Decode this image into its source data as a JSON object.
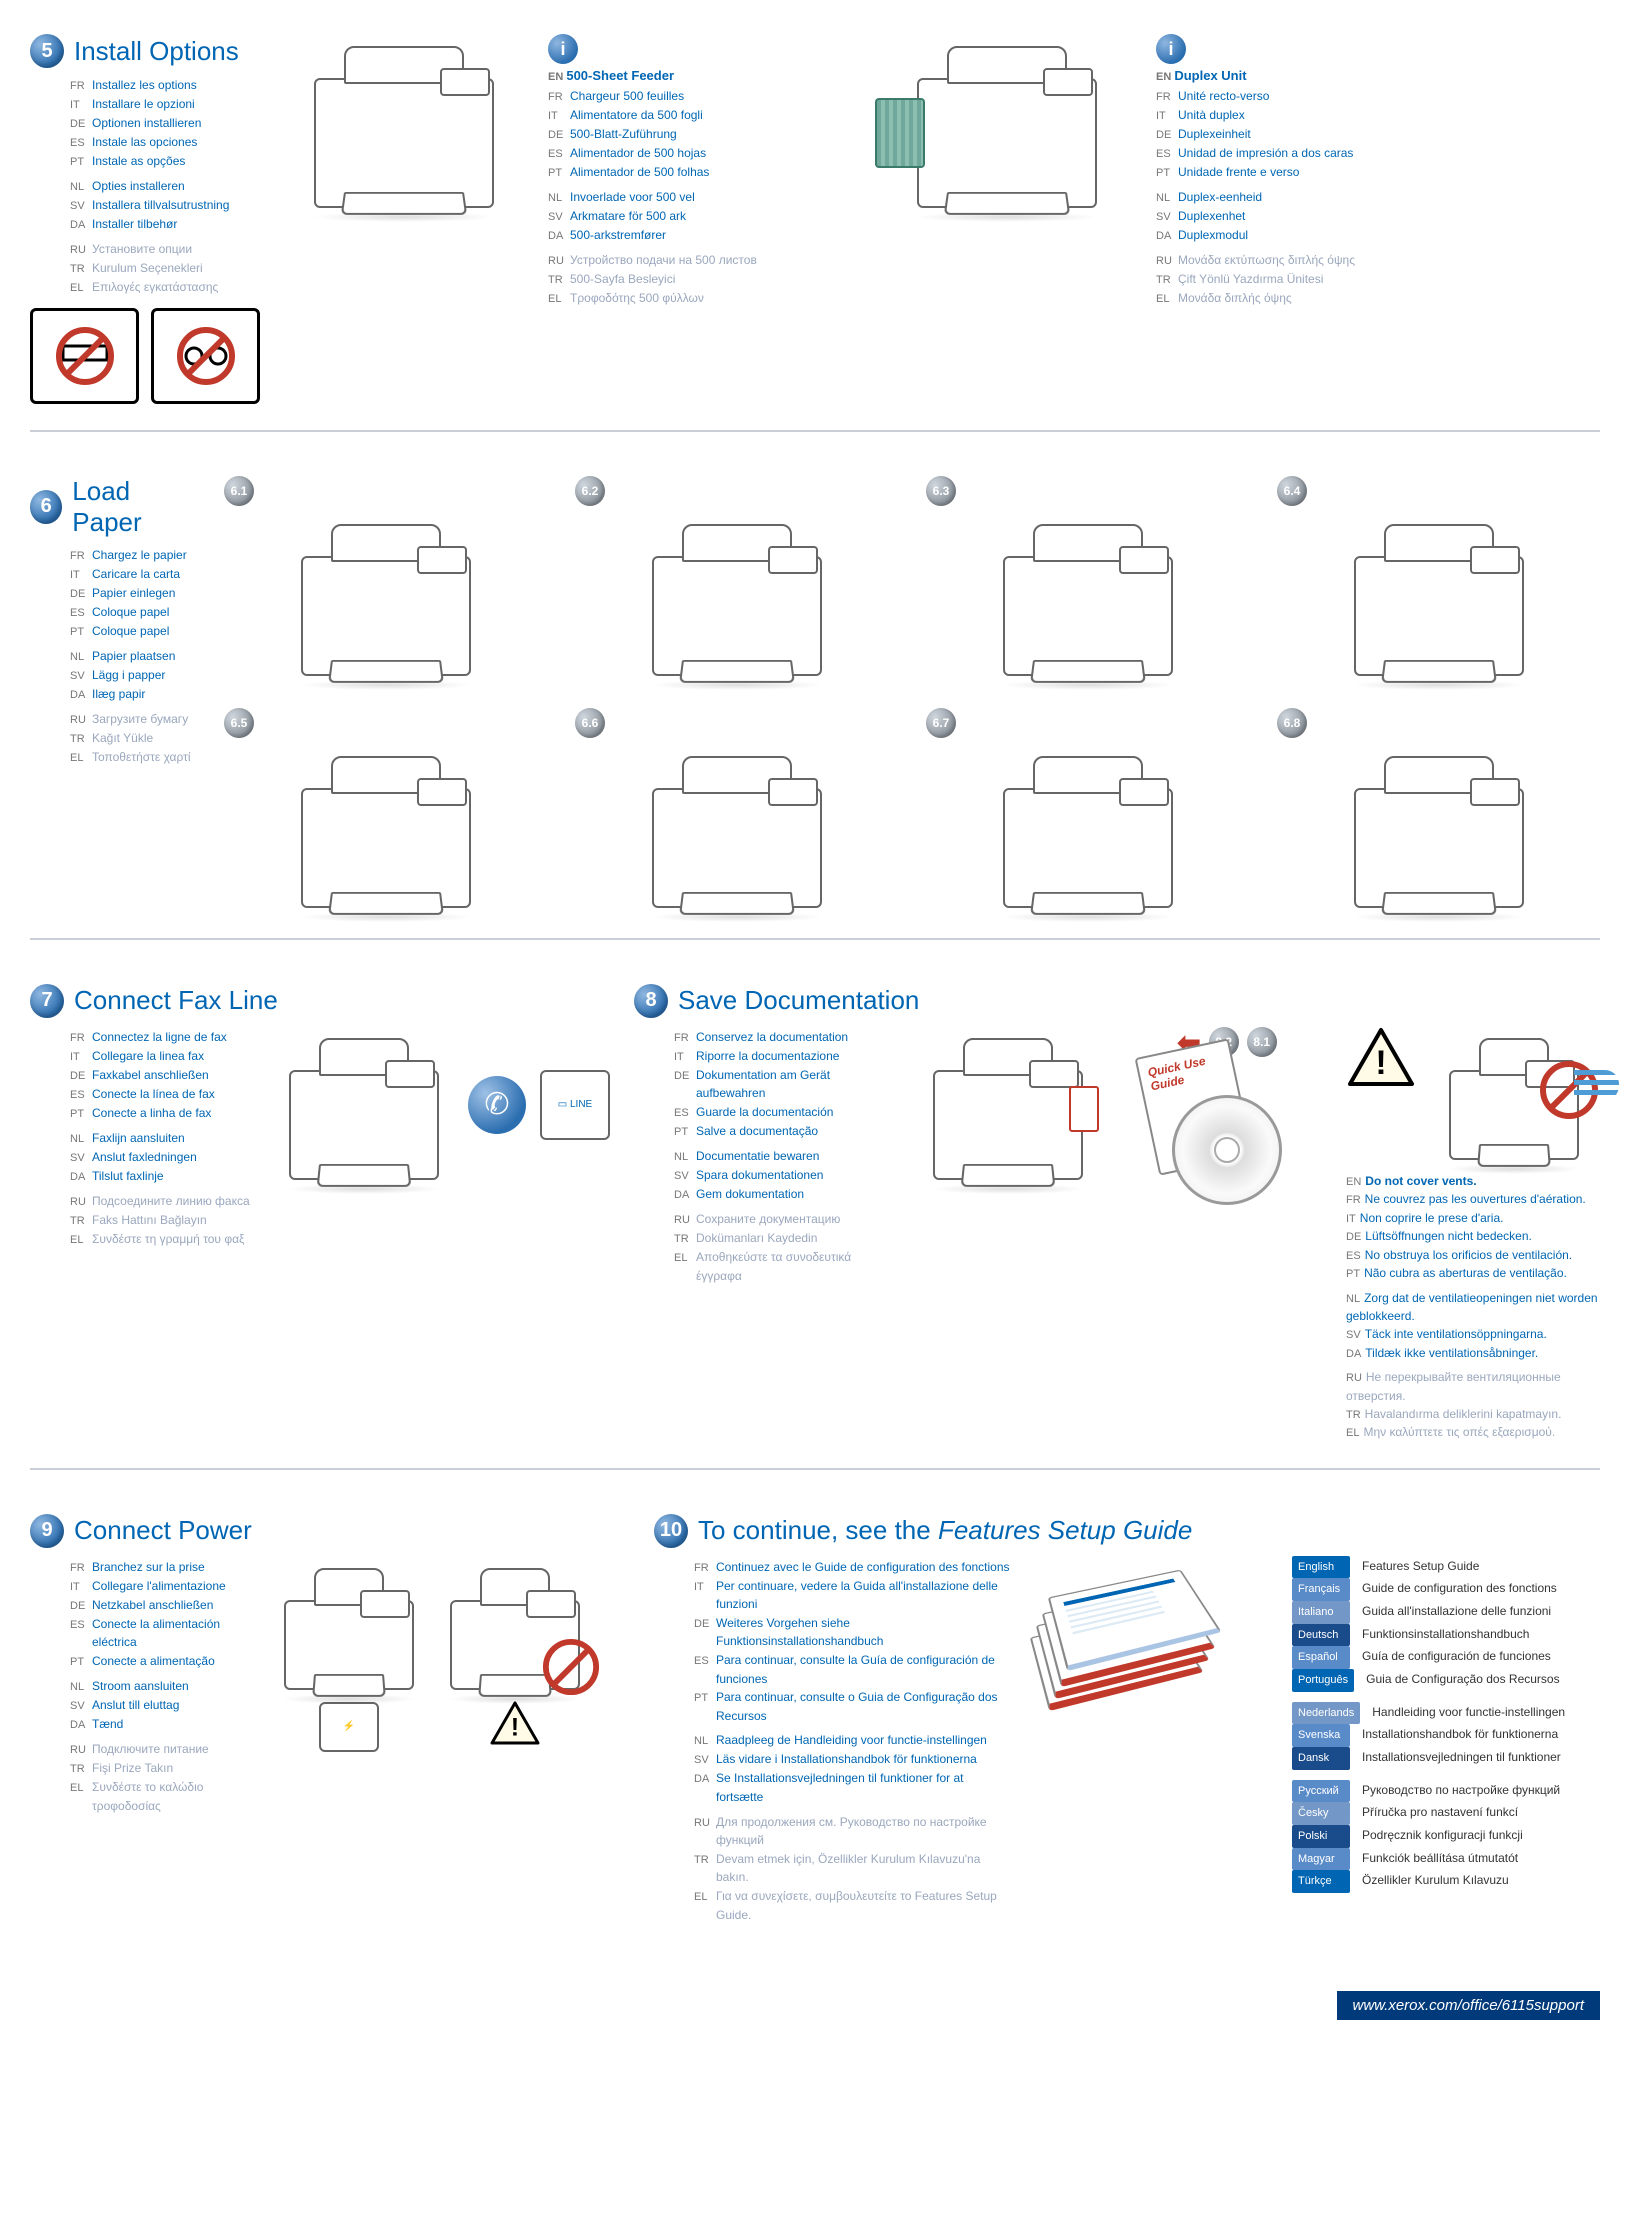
{
  "footer_url": "www.xerox.com/office/6115support",
  "steps": {
    "s5": {
      "num": "5",
      "title": "Install Options",
      "langs": [
        {
          "c": "FR",
          "t": "Installez les options"
        },
        {
          "c": "IT",
          "t": "Installare le opzioni"
        },
        {
          "c": "DE",
          "t": "Optionen installieren"
        },
        {
          "c": "ES",
          "t": "Instale las opciones"
        },
        {
          "c": "PT",
          "t": "Instale as opções"
        },
        {
          "sep": true
        },
        {
          "c": "NL",
          "t": "Opties installeren"
        },
        {
          "c": "SV",
          "t": "Installera tillvalsutrustning"
        },
        {
          "c": "DA",
          "t": "Installer tilbehør"
        },
        {
          "sep": true
        },
        {
          "c": "RU",
          "t": "Установите опции",
          "muted": true
        },
        {
          "c": "TR",
          "t": "Kurulum Seçenekleri",
          "muted": true
        },
        {
          "c": "EL",
          "t": "Επιλογές εγκατάστασης",
          "muted": true
        }
      ]
    },
    "feeder": {
      "title": "500-Sheet Feeder",
      "langs": [
        {
          "c": "FR",
          "t": "Chargeur 500 feuilles"
        },
        {
          "c": "IT",
          "t": "Alimentatore da 500 fogli"
        },
        {
          "c": "DE",
          "t": "500-Blatt-Zuführung"
        },
        {
          "c": "ES",
          "t": "Alimentador de 500 hojas"
        },
        {
          "c": "PT",
          "t": "Alimentador de 500 folhas"
        },
        {
          "sep": true
        },
        {
          "c": "NL",
          "t": "Invoerlade voor 500 vel"
        },
        {
          "c": "SV",
          "t": "Arkmatare för 500 ark"
        },
        {
          "c": "DA",
          "t": "500-arkstremfører"
        },
        {
          "sep": true
        },
        {
          "c": "RU",
          "t": "Устройство подачи на 500 листов",
          "muted": true
        },
        {
          "c": "TR",
          "t": "500-Sayfa Besleyici",
          "muted": true
        },
        {
          "c": "EL",
          "t": "Τροφοδότης 500 φύλλων",
          "muted": true
        }
      ]
    },
    "duplex": {
      "title": "Duplex Unit",
      "langs": [
        {
          "c": "FR",
          "t": "Unité recto-verso"
        },
        {
          "c": "IT",
          "t": "Unità duplex"
        },
        {
          "c": "DE",
          "t": "Duplexeinheit"
        },
        {
          "c": "ES",
          "t": "Unidad de impresión a dos caras"
        },
        {
          "c": "PT",
          "t": "Unidade frente e verso"
        },
        {
          "sep": true
        },
        {
          "c": "NL",
          "t": "Duplex-eenheid"
        },
        {
          "c": "SV",
          "t": "Duplexenhet"
        },
        {
          "c": "DA",
          "t": "Duplexmodul"
        },
        {
          "sep": true
        },
        {
          "c": "RU",
          "t": "Μονάδα εκτύπωσης διπλής όψης",
          "muted": true
        },
        {
          "c": "TR",
          "t": "Çift Yönlü Yazdırma Ünitesi",
          "muted": true
        },
        {
          "c": "EL",
          "t": "Μονάδα διπλής όψης",
          "muted": true
        }
      ]
    },
    "s6": {
      "num": "6",
      "title": "Load Paper",
      "subs": [
        "6.1",
        "6.2",
        "6.3",
        "6.4",
        "6.5",
        "6.6",
        "6.7",
        "6.8"
      ],
      "langs": [
        {
          "c": "FR",
          "t": "Chargez le papier"
        },
        {
          "c": "IT",
          "t": "Caricare la carta"
        },
        {
          "c": "DE",
          "t": "Papier einlegen"
        },
        {
          "c": "ES",
          "t": "Coloque papel"
        },
        {
          "c": "PT",
          "t": "Coloque papel"
        },
        {
          "sep": true
        },
        {
          "c": "NL",
          "t": "Papier plaatsen"
        },
        {
          "c": "SV",
          "t": "Lägg i papper"
        },
        {
          "c": "DA",
          "t": "Ilæg papir"
        },
        {
          "sep": true
        },
        {
          "c": "RU",
          "t": "Загрузите бумагу",
          "muted": true
        },
        {
          "c": "TR",
          "t": "Kağıt Yükle",
          "muted": true
        },
        {
          "c": "EL",
          "t": "Τοποθετήστε χαρτί",
          "muted": true
        }
      ]
    },
    "s7": {
      "num": "7",
      "title": "Connect Fax Line",
      "langs": [
        {
          "c": "FR",
          "t": "Connectez la ligne de fax"
        },
        {
          "c": "IT",
          "t": "Collegare la linea fax"
        },
        {
          "c": "DE",
          "t": "Faxkabel anschließen"
        },
        {
          "c": "ES",
          "t": "Conecte la línea de fax"
        },
        {
          "c": "PT",
          "t": "Conecte a linha de fax"
        },
        {
          "sep": true
        },
        {
          "c": "NL",
          "t": "Faxlijn aansluiten"
        },
        {
          "c": "SV",
          "t": "Anslut faxledningen"
        },
        {
          "c": "DA",
          "t": "Tilslut faxlinje"
        },
        {
          "sep": true
        },
        {
          "c": "RU",
          "t": "Подсоедините линию факса",
          "muted": true
        },
        {
          "c": "TR",
          "t": "Faks Hattını Bağlayın",
          "muted": true
        },
        {
          "c": "EL",
          "t": "Συνδέστε τη γραμμή του φαξ",
          "muted": true
        }
      ]
    },
    "s8": {
      "num": "8",
      "title": "Save Documentation",
      "subs": [
        "8.1",
        "8.2"
      ],
      "langs": [
        {
          "c": "FR",
          "t": "Conservez la documentation"
        },
        {
          "c": "IT",
          "t": "Riporre la documentazione"
        },
        {
          "c": "DE",
          "t": "Dokumentation am Gerät aufbewahren"
        },
        {
          "c": "ES",
          "t": "Guarde la documentación"
        },
        {
          "c": "PT",
          "t": "Salve a documentação"
        },
        {
          "sep": true
        },
        {
          "c": "NL",
          "t": "Documentatie bewaren"
        },
        {
          "c": "SV",
          "t": "Spara dokumentationen"
        },
        {
          "c": "DA",
          "t": "Gem dokumentation"
        },
        {
          "sep": true
        },
        {
          "c": "RU",
          "t": "Сохраните документацию",
          "muted": true
        },
        {
          "c": "TR",
          "t": "Dokümanları Kaydedin",
          "muted": true
        },
        {
          "c": "EL",
          "t": "Αποθηκεύστε τα συνοδευτικά έγγραφα",
          "muted": true
        }
      ]
    },
    "vents": {
      "title": "Do not cover vents.",
      "langs": [
        {
          "c": "FR",
          "t": "Ne couvrez pas les ouvertures d'aération."
        },
        {
          "c": "IT",
          "t": "Non coprire le prese d'aria."
        },
        {
          "c": "DE",
          "t": "Lüftsöffnungen nicht bedecken."
        },
        {
          "c": "ES",
          "t": "No obstruya los orificios de ventilación."
        },
        {
          "c": "PT",
          "t": "Não cubra as aberturas de ventilação."
        },
        {
          "sep": true
        },
        {
          "c": "NL",
          "t": "Zorg dat de ventilatieopeningen niet worden geblokkeerd."
        },
        {
          "c": "SV",
          "t": "Täck inte ventilationsöppningarna."
        },
        {
          "c": "DA",
          "t": "Tildæk ikke ventilationsåbninger."
        },
        {
          "sep": true
        },
        {
          "c": "RU",
          "t": "Не перекрывайте вентиляционные отверстия.",
          "muted": true
        },
        {
          "c": "TR",
          "t": "Havalandırma deliklerini kapatmayın.",
          "muted": true
        },
        {
          "c": "EL",
          "t": "Μην καλύπτετε τις οπές εξαερισμού.",
          "muted": true
        }
      ]
    },
    "s9": {
      "num": "9",
      "title": "Connect Power",
      "langs": [
        {
          "c": "FR",
          "t": "Branchez sur la prise"
        },
        {
          "c": "IT",
          "t": "Collegare l'alimentazione"
        },
        {
          "c": "DE",
          "t": "Netzkabel anschließen"
        },
        {
          "c": "ES",
          "t": "Conecte la alimentación eléctrica"
        },
        {
          "c": "PT",
          "t": "Conecte a alimentação"
        },
        {
          "sep": true
        },
        {
          "c": "NL",
          "t": "Stroom aansluiten"
        },
        {
          "c": "SV",
          "t": "Anslut till eluttag"
        },
        {
          "c": "DA",
          "t": "Tænd"
        },
        {
          "sep": true
        },
        {
          "c": "RU",
          "t": "Подключите питание",
          "muted": true
        },
        {
          "c": "TR",
          "t": "Fişi Prize Takın",
          "muted": true
        },
        {
          "c": "EL",
          "t": "Συνδέστε το καλώδιο τροφοδοσίας",
          "muted": true
        }
      ]
    },
    "s10": {
      "num": "10",
      "title": "To continue, see the ",
      "title_em": "Features Setup Guide",
      "langs": [
        {
          "c": "FR",
          "t": "Continuez avec le Guide de configuration des fonctions"
        },
        {
          "c": "IT",
          "t": "Per continuare, vedere la Guida all'installazione delle funzioni"
        },
        {
          "c": "DE",
          "t": "Weiteres Vorgehen siehe Funktionsinstallationshandbuch"
        },
        {
          "c": "ES",
          "t": "Para continuar, consulte la Guía de configuración de funciones"
        },
        {
          "c": "PT",
          "t": "Para continuar, consulte o Guia de Configuração dos Recursos"
        },
        {
          "sep": true
        },
        {
          "c": "NL",
          "t": "Raadpleeg de Handleiding voor functie-instellingen"
        },
        {
          "c": "SV",
          "t": "Läs vidare i Installationshandbok för funktionerna"
        },
        {
          "c": "DA",
          "t": "Se Installationsvejledningen til funktioner for at fortsætte"
        },
        {
          "sep": true
        },
        {
          "c": "RU",
          "t": "Для продолжения см. Руководство по настройке функций",
          "muted": true
        },
        {
          "c": "TR",
          "t": "Devam etmek için, Özellikler Kurulum Kılavuzu'na bakın.",
          "muted": true
        },
        {
          "c": "EL",
          "t": "Για να συνεχίσετε, συμβουλευτείτε το Features Setup Guide.",
          "muted": true
        }
      ]
    },
    "feature_guide": [
      {
        "lang": "English",
        "title": "Features Setup Guide",
        "cls": ""
      },
      {
        "lang": "Français",
        "title": "Guide de configuration des fonctions",
        "cls": "alt1"
      },
      {
        "lang": "Italiano",
        "title": "Guida all'installazione delle funzioni",
        "cls": "alt3"
      },
      {
        "lang": "Deutsch",
        "title": "Funktionsinstallationshandbuch",
        "cls": "alt2"
      },
      {
        "lang": "Español",
        "title": "Guía de configuración de funciones",
        "cls": "alt1"
      },
      {
        "lang": "Português",
        "title": "Guia de Configuração dos Recursos",
        "cls": ""
      },
      {
        "sep": true
      },
      {
        "lang": "Nederlands",
        "title": "Handleiding voor functie-instellingen",
        "cls": "alt3"
      },
      {
        "lang": "Svenska",
        "title": "Installationshandbok för funktionerna",
        "cls": "alt1"
      },
      {
        "lang": "Dansk",
        "title": "Installationsvejledningen til funktioner",
        "cls": "alt2"
      },
      {
        "sep": true
      },
      {
        "lang": "Русский",
        "title": "Руководство по настройке функций",
        "cls": "alt1"
      },
      {
        "lang": "Česky",
        "title": "Příručka pro nastavení funkcí",
        "cls": "alt3"
      },
      {
        "lang": "Polski",
        "title": "Podręcznik konfiguracji funkcji",
        "cls": "alt2"
      },
      {
        "lang": "Magyar",
        "title": "Funkciók beállítása útmutatót",
        "cls": "alt1"
      },
      {
        "lang": "Türkçe",
        "title": "Özellikler Kurulum Kılavuzu",
        "cls": ""
      }
    ],
    "quick_guide": "Quick Use Guide"
  }
}
